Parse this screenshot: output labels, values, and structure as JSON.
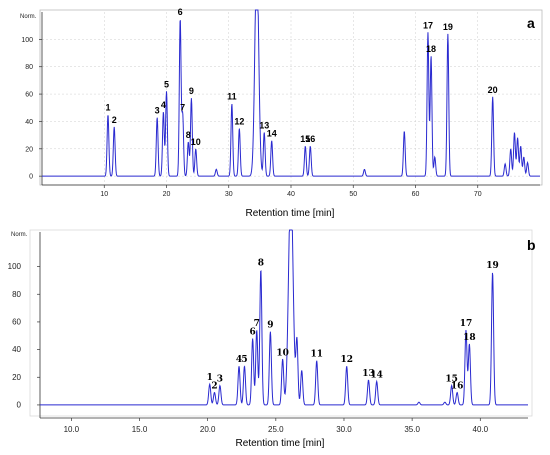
{
  "chart_data": [
    {
      "type": "line",
      "panel_label": "a",
      "ylabel": "Norm.",
      "xlabel": "Retention time [min]",
      "xlim": [
        0,
        80
      ],
      "ylim": [
        -5,
        120
      ],
      "x_ticks": [
        10,
        20,
        30,
        40,
        50,
        60,
        70
      ],
      "y_ticks": [
        0,
        20,
        40,
        60,
        80,
        100
      ],
      "color": "#2a2ad0",
      "grid": true,
      "peaks": [
        {
          "label": "1",
          "x": 10.6,
          "y": 45
        },
        {
          "label": "2",
          "x": 11.6,
          "y": 36
        },
        {
          "label": "3",
          "x": 18.5,
          "y": 43
        },
        {
          "label": "4",
          "x": 19.5,
          "y": 47
        },
        {
          "label": "5",
          "x": 20.0,
          "y": 62
        },
        {
          "label": "6",
          "x": 22.2,
          "y": 115
        },
        {
          "label": "7",
          "x": 22.6,
          "y": 45
        },
        {
          "label": "8",
          "x": 23.5,
          "y": 25
        },
        {
          "label": "9",
          "x": 24.0,
          "y": 57
        },
        {
          "label": "10",
          "x": 24.7,
          "y": 20
        },
        {
          "label": "11",
          "x": 30.5,
          "y": 53
        },
        {
          "label": "12",
          "x": 31.7,
          "y": 35
        },
        {
          "label": "13",
          "x": 35.7,
          "y": 32
        },
        {
          "label": "14",
          "x": 36.9,
          "y": 26
        },
        {
          "label": "15",
          "x": 42.3,
          "y": 22
        },
        {
          "label": "16",
          "x": 43.1,
          "y": 22
        },
        {
          "label": "17",
          "x": 62.0,
          "y": 105
        },
        {
          "label": "18",
          "x": 62.5,
          "y": 88
        },
        {
          "label": "19",
          "x": 65.2,
          "y": 104
        },
        {
          "label": "20",
          "x": 72.4,
          "y": 58
        }
      ],
      "other_peaks": [
        {
          "x": 34.5,
          "y": 160
        },
        {
          "x": 28.0,
          "y": 5
        },
        {
          "x": 51.8,
          "y": 5
        },
        {
          "x": 58.2,
          "y": 33
        },
        {
          "x": 63.1,
          "y": 14
        },
        {
          "x": 74.4,
          "y": 9
        },
        {
          "x": 75.3,
          "y": 20
        },
        {
          "x": 75.9,
          "y": 32
        },
        {
          "x": 76.4,
          "y": 28
        },
        {
          "x": 76.9,
          "y": 22
        },
        {
          "x": 77.4,
          "y": 14
        },
        {
          "x": 78.0,
          "y": 10
        }
      ]
    },
    {
      "type": "line",
      "panel_label": "b",
      "ylabel": "Norm.",
      "xlabel": "Retention time [min]",
      "xlim": [
        7.7,
        43.5
      ],
      "ylim": [
        -8,
        125
      ],
      "x_ticks": [
        10.0,
        15.0,
        20.0,
        25.0,
        30.0,
        35.0,
        40.0
      ],
      "x_tick_labels": [
        "10.0",
        "15.0",
        "20.0",
        "25.0",
        "30.0",
        "35.0",
        "40.0"
      ],
      "y_ticks": [
        0,
        20,
        40,
        60,
        80,
        100
      ],
      "color": "#2a2ad0",
      "grid": false,
      "peaks": [
        {
          "label": "1",
          "x": 20.15,
          "y": 15
        },
        {
          "label": "2",
          "x": 20.5,
          "y": 9
        },
        {
          "label": "3",
          "x": 20.9,
          "y": 14
        },
        {
          "label": "4",
          "x": 22.3,
          "y": 28
        },
        {
          "label": "5",
          "x": 22.7,
          "y": 28
        },
        {
          "label": "6",
          "x": 23.3,
          "y": 48
        },
        {
          "label": "7",
          "x": 23.6,
          "y": 54
        },
        {
          "label": "8",
          "x": 23.9,
          "y": 98
        },
        {
          "label": "9",
          "x": 24.6,
          "y": 53
        },
        {
          "label": "10",
          "x": 25.5,
          "y": 33
        },
        {
          "label": "11",
          "x": 28.0,
          "y": 32
        },
        {
          "label": "12",
          "x": 30.2,
          "y": 28
        },
        {
          "label": "13",
          "x": 31.8,
          "y": 18
        },
        {
          "label": "14",
          "x": 32.4,
          "y": 17
        },
        {
          "label": "15",
          "x": 37.9,
          "y": 14
        },
        {
          "label": "16",
          "x": 38.3,
          "y": 9
        },
        {
          "label": "17",
          "x": 38.95,
          "y": 54
        },
        {
          "label": "18",
          "x": 39.2,
          "y": 44
        },
        {
          "label": "19",
          "x": 40.9,
          "y": 96
        }
      ],
      "other_peaks": [
        {
          "x": 26.1,
          "y": 160
        },
        {
          "x": 26.55,
          "y": 45
        },
        {
          "x": 26.9,
          "y": 25
        },
        {
          "x": 35.5,
          "y": 2
        },
        {
          "x": 37.4,
          "y": 2
        }
      ]
    }
  ]
}
